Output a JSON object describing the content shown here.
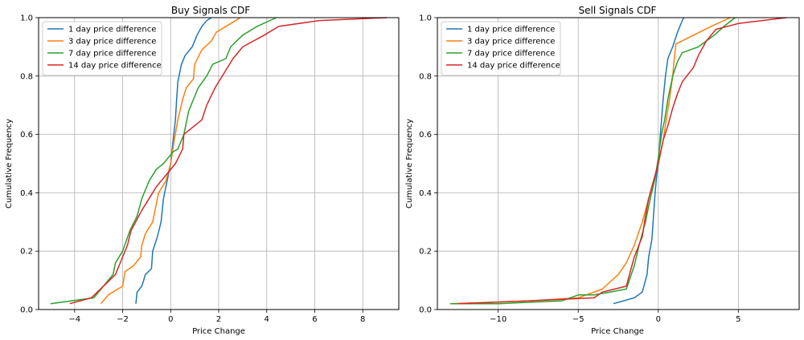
{
  "chart_data": [
    {
      "type": "line",
      "title": "Buy Signals CDF",
      "xlabel": "Price Change",
      "ylabel": "Cumulative Frequency",
      "xlim": [
        -5.5,
        9.5
      ],
      "ylim": [
        0,
        1
      ],
      "xticks": [
        -4,
        -2,
        0,
        2,
        4,
        6,
        8
      ],
      "xtick_labels": [
        "−4",
        "−2",
        "0",
        "2",
        "4",
        "6",
        "8"
      ],
      "yticks": [
        0,
        0.2,
        0.4,
        0.6,
        0.8,
        1.0
      ],
      "ytick_labels": [
        "0.0",
        "0.2",
        "0.4",
        "0.6",
        "0.8",
        "1.0"
      ],
      "grid": true,
      "legend_position": "upper-left",
      "series": [
        {
          "name": "1 day price difference",
          "color": "#1f77b4",
          "points": [
            [
              -1.45,
              0.02
            ],
            [
              -1.4,
              0.06
            ],
            [
              -1.2,
              0.08
            ],
            [
              -1.05,
              0.12
            ],
            [
              -0.8,
              0.14
            ],
            [
              -0.75,
              0.2
            ],
            [
              -0.55,
              0.25
            ],
            [
              -0.4,
              0.3
            ],
            [
              -0.3,
              0.38
            ],
            [
              -0.15,
              0.44
            ],
            [
              0.0,
              0.5
            ],
            [
              0.1,
              0.58
            ],
            [
              0.2,
              0.65
            ],
            [
              0.25,
              0.72
            ],
            [
              0.3,
              0.78
            ],
            [
              0.45,
              0.84
            ],
            [
              0.6,
              0.87
            ],
            [
              0.9,
              0.9
            ],
            [
              1.1,
              0.94
            ],
            [
              1.3,
              0.97
            ],
            [
              1.5,
              0.99
            ],
            [
              1.7,
              1.0
            ]
          ]
        },
        {
          "name": "3 day price difference",
          "color": "#ff7f0e",
          "points": [
            [
              -2.9,
              0.02
            ],
            [
              -2.6,
              0.05
            ],
            [
              -2.0,
              0.08
            ],
            [
              -1.9,
              0.13
            ],
            [
              -1.55,
              0.15
            ],
            [
              -1.25,
              0.18
            ],
            [
              -1.2,
              0.22
            ],
            [
              -1.05,
              0.26
            ],
            [
              -0.75,
              0.3
            ],
            [
              -0.6,
              0.36
            ],
            [
              -0.5,
              0.4
            ],
            [
              -0.2,
              0.44
            ],
            [
              0.0,
              0.5
            ],
            [
              0.15,
              0.58
            ],
            [
              0.3,
              0.65
            ],
            [
              0.5,
              0.72
            ],
            [
              0.65,
              0.76
            ],
            [
              0.95,
              0.79
            ],
            [
              1.0,
              0.84
            ],
            [
              1.3,
              0.89
            ],
            [
              1.7,
              0.92
            ],
            [
              1.9,
              0.95
            ],
            [
              2.5,
              0.98
            ],
            [
              2.9,
              1.0
            ]
          ]
        },
        {
          "name": "7 day price difference",
          "color": "#2ca02c",
          "points": [
            [
              -5.0,
              0.02
            ],
            [
              -3.2,
              0.04
            ],
            [
              -2.8,
              0.08
            ],
            [
              -2.4,
              0.12
            ],
            [
              -2.3,
              0.16
            ],
            [
              -2.0,
              0.2
            ],
            [
              -1.7,
              0.27
            ],
            [
              -1.4,
              0.32
            ],
            [
              -1.2,
              0.38
            ],
            [
              -0.9,
              0.44
            ],
            [
              -0.6,
              0.48
            ],
            [
              -0.3,
              0.5
            ],
            [
              -0.1,
              0.52
            ],
            [
              0.1,
              0.54
            ],
            [
              0.3,
              0.55
            ],
            [
              0.55,
              0.6
            ],
            [
              0.75,
              0.68
            ],
            [
              0.95,
              0.72
            ],
            [
              1.15,
              0.76
            ],
            [
              1.5,
              0.8
            ],
            [
              1.75,
              0.84
            ],
            [
              2.3,
              0.86
            ],
            [
              2.5,
              0.9
            ],
            [
              3.0,
              0.94
            ],
            [
              3.6,
              0.97
            ],
            [
              4.4,
              1.0
            ]
          ]
        },
        {
          "name": "14 day price difference",
          "color": "#d62728",
          "points": [
            [
              -4.2,
              0.02
            ],
            [
              -3.3,
              0.04
            ],
            [
              -2.8,
              0.08
            ],
            [
              -2.3,
              0.12
            ],
            [
              -2.0,
              0.18
            ],
            [
              -1.8,
              0.22
            ],
            [
              -1.65,
              0.27
            ],
            [
              -1.2,
              0.34
            ],
            [
              -0.9,
              0.38
            ],
            [
              -0.6,
              0.42
            ],
            [
              -0.4,
              0.44
            ],
            [
              -0.1,
              0.47
            ],
            [
              0.2,
              0.5
            ],
            [
              0.5,
              0.55
            ],
            [
              0.55,
              0.6
            ],
            [
              1.3,
              0.65
            ],
            [
              1.5,
              0.7
            ],
            [
              1.85,
              0.76
            ],
            [
              2.3,
              0.82
            ],
            [
              2.6,
              0.86
            ],
            [
              3.0,
              0.9
            ],
            [
              3.9,
              0.94
            ],
            [
              4.5,
              0.97
            ],
            [
              6.2,
              0.99
            ],
            [
              9.0,
              1.0
            ]
          ]
        }
      ]
    },
    {
      "type": "line",
      "title": "Sell Signals CDF",
      "xlabel": "Price Change",
      "ylabel": "Cumulative Frequency",
      "xlim": [
        -13.8,
        8.8
      ],
      "ylim": [
        0,
        1
      ],
      "xticks": [
        -10,
        -5,
        0,
        5
      ],
      "xtick_labels": [
        "−10",
        "−5",
        "0",
        "5"
      ],
      "yticks": [
        0,
        0.2,
        0.4,
        0.6,
        0.8,
        1.0
      ],
      "ytick_labels": [
        "0.0",
        "0.2",
        "0.4",
        "0.6",
        "0.8",
        "1.0"
      ],
      "grid": true,
      "legend_position": "upper-left",
      "series": [
        {
          "name": "1 day price difference",
          "color": "#1f77b4",
          "points": [
            [
              -2.8,
              0.02
            ],
            [
              -1.5,
              0.04
            ],
            [
              -1.0,
              0.06
            ],
            [
              -0.7,
              0.12
            ],
            [
              -0.6,
              0.18
            ],
            [
              -0.4,
              0.24
            ],
            [
              -0.3,
              0.32
            ],
            [
              -0.2,
              0.4
            ],
            [
              -0.1,
              0.46
            ],
            [
              0.0,
              0.5
            ],
            [
              0.1,
              0.58
            ],
            [
              0.2,
              0.65
            ],
            [
              0.3,
              0.72
            ],
            [
              0.45,
              0.8
            ],
            [
              0.6,
              0.86
            ],
            [
              0.9,
              0.9
            ],
            [
              1.2,
              0.95
            ],
            [
              1.5,
              0.99
            ],
            [
              1.6,
              1.0
            ]
          ]
        },
        {
          "name": "3 day price difference",
          "color": "#ff7f0e",
          "points": [
            [
              -13.0,
              0.02
            ],
            [
              -8.0,
              0.03
            ],
            [
              -5.0,
              0.04
            ],
            [
              -3.5,
              0.07
            ],
            [
              -2.5,
              0.12
            ],
            [
              -2.0,
              0.16
            ],
            [
              -1.5,
              0.22
            ],
            [
              -1.0,
              0.3
            ],
            [
              -0.6,
              0.38
            ],
            [
              -0.3,
              0.44
            ],
            [
              0.0,
              0.5
            ],
            [
              0.3,
              0.58
            ],
            [
              0.5,
              0.65
            ],
            [
              0.7,
              0.72
            ],
            [
              0.9,
              0.8
            ],
            [
              1.0,
              0.86
            ],
            [
              1.1,
              0.91
            ],
            [
              2.2,
              0.94
            ],
            [
              3.3,
              0.97
            ],
            [
              4.5,
              1.0
            ]
          ]
        },
        {
          "name": "7 day price difference",
          "color": "#2ca02c",
          "points": [
            [
              -13.0,
              0.02
            ],
            [
              -10.0,
              0.02
            ],
            [
              -6.0,
              0.03
            ],
            [
              -5.0,
              0.05
            ],
            [
              -4.0,
              0.05
            ],
            [
              -2.0,
              0.07
            ],
            [
              -1.5,
              0.15
            ],
            [
              -1.2,
              0.22
            ],
            [
              -0.8,
              0.3
            ],
            [
              -0.5,
              0.38
            ],
            [
              -0.2,
              0.45
            ],
            [
              0.0,
              0.52
            ],
            [
              0.2,
              0.6
            ],
            [
              0.4,
              0.65
            ],
            [
              0.6,
              0.72
            ],
            [
              0.9,
              0.8
            ],
            [
              1.2,
              0.85
            ],
            [
              1.5,
              0.88
            ],
            [
              2.5,
              0.9
            ],
            [
              3.5,
              0.94
            ],
            [
              4.1,
              0.97
            ],
            [
              4.8,
              1.0
            ]
          ]
        },
        {
          "name": "14 day price difference",
          "color": "#d62728",
          "points": [
            [
              -12.5,
              0.02
            ],
            [
              -8.0,
              0.03
            ],
            [
              -4.0,
              0.04
            ],
            [
              -3.5,
              0.06
            ],
            [
              -2.0,
              0.08
            ],
            [
              -1.5,
              0.18
            ],
            [
              -1.0,
              0.25
            ],
            [
              -0.8,
              0.32
            ],
            [
              -0.6,
              0.38
            ],
            [
              -0.3,
              0.44
            ],
            [
              0.0,
              0.5
            ],
            [
              0.3,
              0.58
            ],
            [
              0.6,
              0.63
            ],
            [
              0.9,
              0.69
            ],
            [
              1.2,
              0.74
            ],
            [
              1.5,
              0.78
            ],
            [
              2.2,
              0.83
            ],
            [
              2.5,
              0.87
            ],
            [
              3.0,
              0.92
            ],
            [
              3.6,
              0.96
            ],
            [
              5.0,
              0.98
            ],
            [
              6.5,
              0.99
            ],
            [
              8.0,
              1.0
            ]
          ]
        }
      ]
    }
  ]
}
